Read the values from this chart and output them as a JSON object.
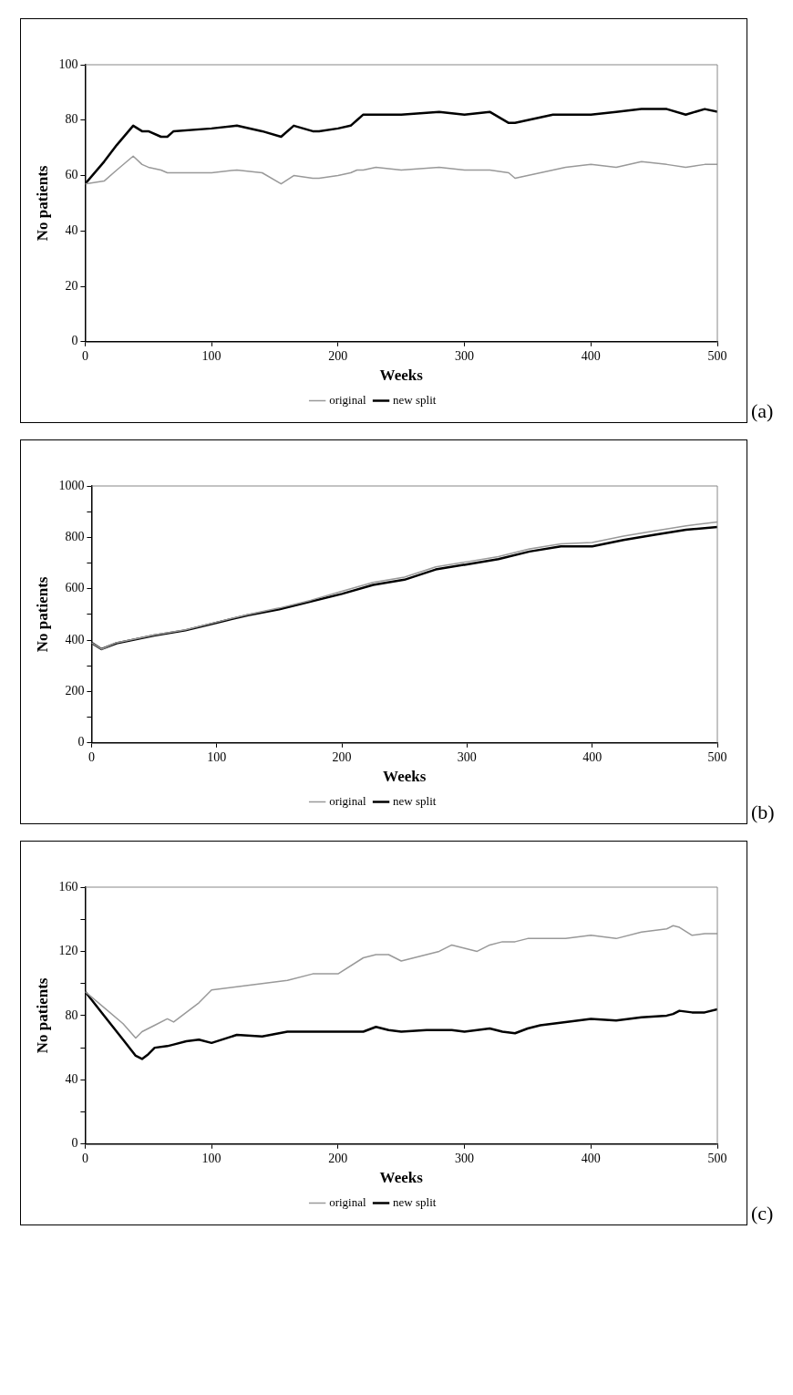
{
  "chart_data": [
    {
      "type": "line",
      "xlabel": "Weeks",
      "ylabel": "No patients",
      "xlim": [
        0,
        500
      ],
      "xticks": [
        0,
        100,
        200,
        300,
        400,
        500
      ],
      "ylim": [
        0,
        100
      ],
      "yticks": [
        0,
        20,
        40,
        60,
        80,
        100
      ],
      "grid": false,
      "legend": "bottom",
      "marker": "none",
      "annotations": [
        "(a)"
      ],
      "x": [
        0,
        15,
        25,
        38,
        45,
        50,
        60,
        65,
        70,
        100,
        120,
        140,
        155,
        165,
        180,
        185,
        200,
        210,
        215,
        220,
        230,
        250,
        280,
        300,
        320,
        335,
        340,
        350,
        360,
        370,
        380,
        400,
        420,
        440,
        460,
        475,
        490,
        500
      ],
      "series": [
        {
          "name": "original",
          "color": "#999999",
          "values": [
            57,
            58,
            62,
            67,
            64,
            63,
            62,
            61,
            61,
            61,
            62,
            61,
            57,
            60,
            59,
            59,
            60,
            61,
            62,
            62,
            63,
            62,
            63,
            62,
            62,
            61,
            59,
            60,
            61,
            62,
            63,
            64,
            63,
            65,
            64,
            63,
            64,
            64
          ]
        },
        {
          "name": "new split",
          "color": "#000000",
          "values": [
            57,
            65,
            71,
            78,
            76,
            76,
            74,
            74,
            76,
            77,
            78,
            76,
            74,
            78,
            76,
            76,
            77,
            78,
            80,
            82,
            82,
            82,
            83,
            82,
            83,
            79,
            79,
            80,
            81,
            82,
            82,
            82,
            83,
            84,
            84,
            82,
            84,
            83
          ]
        }
      ]
    },
    {
      "type": "line",
      "xlabel": "Weeks",
      "ylabel": "No patients",
      "xlim": [
        0,
        500
      ],
      "xticks": [
        0,
        100,
        200,
        300,
        400,
        500
      ],
      "ylim": [
        0,
        1000
      ],
      "yticks": [
        0,
        {
          "value": 100,
          "label": null
        },
        200,
        {
          "value": 300,
          "label": null
        },
        400,
        {
          "value": 500,
          "label": null
        },
        600,
        {
          "value": 700,
          "label": null
        },
        800,
        {
          "value": 900,
          "label": null
        },
        1000
      ],
      "grid": false,
      "legend": "bottom",
      "marker": "none",
      "annotations": [
        "(b)"
      ],
      "x": [
        0,
        8,
        20,
        50,
        75,
        100,
        125,
        150,
        175,
        200,
        225,
        250,
        275,
        300,
        325,
        350,
        375,
        400,
        425,
        450,
        475,
        500
      ],
      "series": [
        {
          "name": "original",
          "color": "#999999",
          "values": [
            390,
            365,
            390,
            420,
            440,
            470,
            500,
            525,
            555,
            590,
            625,
            645,
            685,
            705,
            725,
            755,
            775,
            780,
            805,
            825,
            845,
            860
          ]
        },
        {
          "name": "new split",
          "color": "#000000",
          "values": [
            390,
            365,
            388,
            418,
            438,
            468,
            497,
            520,
            550,
            580,
            615,
            635,
            675,
            695,
            715,
            745,
            765,
            765,
            790,
            810,
            830,
            840
          ]
        }
      ]
    },
    {
      "type": "line",
      "xlabel": "Weeks",
      "ylabel": "No patients",
      "xlim": [
        0,
        500
      ],
      "xticks": [
        0,
        100,
        200,
        300,
        400,
        500
      ],
      "ylim": [
        0,
        160
      ],
      "yticks": [
        0,
        {
          "value": 20,
          "label": null
        },
        40,
        {
          "value": 60,
          "label": null
        },
        80,
        {
          "value": 100,
          "label": null
        },
        120,
        {
          "value": 140,
          "label": null
        },
        160
      ],
      "grid": false,
      "legend": "bottom",
      "marker": "none",
      "annotations": [
        "(c)"
      ],
      "x": [
        0,
        15,
        30,
        40,
        45,
        50,
        55,
        65,
        70,
        80,
        90,
        100,
        120,
        140,
        160,
        180,
        200,
        220,
        230,
        240,
        250,
        270,
        280,
        290,
        300,
        310,
        320,
        330,
        340,
        350,
        360,
        380,
        400,
        420,
        440,
        460,
        465,
        470,
        480,
        490,
        500
      ],
      "series": [
        {
          "name": "original",
          "color": "#999999",
          "values": [
            95,
            85,
            75,
            66,
            70,
            72,
            74,
            78,
            76,
            82,
            88,
            96,
            98,
            100,
            102,
            106,
            106,
            116,
            118,
            118,
            114,
            118,
            120,
            124,
            122,
            120,
            124,
            126,
            126,
            128,
            128,
            128,
            130,
            128,
            132,
            134,
            136,
            135,
            130,
            131,
            131
          ]
        },
        {
          "name": "new split",
          "color": "#000000",
          "values": [
            95,
            80,
            65,
            55,
            53,
            56,
            60,
            61,
            62,
            64,
            65,
            63,
            68,
            67,
            70,
            70,
            70,
            70,
            73,
            71,
            70,
            71,
            71,
            71,
            70,
            71,
            72,
            70,
            69,
            72,
            74,
            76,
            78,
            77,
            79,
            80,
            81,
            83,
            82,
            82,
            84
          ]
        }
      ]
    }
  ]
}
